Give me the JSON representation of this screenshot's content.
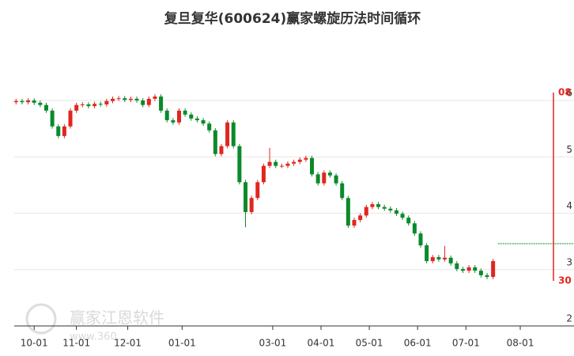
{
  "chart_data": {
    "type": "candlestick",
    "title": "复旦复华(600624)赢家螺旋历法时间循环",
    "watermark": "赢家江恩软件",
    "watermark_url": "www.360...",
    "up_color": "#e0261f",
    "down_color": "#0a8a2a",
    "ylim": [
      2,
      6
    ],
    "yticks": [
      2,
      3,
      4,
      5,
      6
    ],
    "xlim": [
      -0.3,
      92.4
    ],
    "xticks": [
      {
        "value": 3,
        "label": "10-01"
      },
      {
        "value": 10,
        "label": "11-01"
      },
      {
        "value": 18.5,
        "label": "12-01"
      },
      {
        "value": 27.5,
        "label": "01-01"
      },
      {
        "value": 42.5,
        "label": "03-01"
      },
      {
        "value": 50.5,
        "label": "04-01"
      },
      {
        "value": 58.5,
        "label": "05-01"
      },
      {
        "value": 66.5,
        "label": "06-01"
      },
      {
        "value": 74.5,
        "label": "07-01"
      },
      {
        "value": 83.5,
        "label": "08-01"
      }
    ],
    "grid": true,
    "open": [
      5.97,
      5.99,
      5.97,
      6.0,
      5.96,
      5.92,
      5.82,
      5.54,
      5.37,
      5.54,
      5.82,
      5.92,
      5.93,
      5.9,
      5.94,
      5.93,
      5.99,
      6.03,
      6.04,
      6.01,
      6.03,
      6.0,
      5.92,
      6.03,
      6.07,
      5.82,
      5.65,
      5.61,
      5.82,
      5.75,
      5.68,
      5.65,
      5.59,
      5.47,
      5.05,
      5.19,
      5.61,
      5.19,
      4.55,
      4.02,
      4.27,
      4.55,
      4.84,
      4.91,
      4.84,
      4.84,
      4.88,
      4.91,
      4.95,
      4.98,
      4.69,
      4.53,
      4.72,
      4.67,
      4.53,
      4.27,
      3.78,
      3.88,
      3.96,
      4.11,
      4.16,
      4.11,
      4.08,
      4.05,
      3.99,
      3.92,
      3.82,
      3.64,
      3.43,
      3.15,
      3.22,
      3.18,
      3.21,
      3.11,
      3.01,
      2.98,
      3.04,
      2.98,
      2.9,
      2.87
    ],
    "close": [
      5.99,
      5.97,
      6.0,
      5.96,
      5.92,
      5.82,
      5.54,
      5.37,
      5.54,
      5.82,
      5.92,
      5.93,
      5.9,
      5.94,
      5.93,
      5.99,
      6.03,
      6.04,
      6.01,
      6.03,
      6.0,
      5.92,
      6.03,
      6.07,
      5.82,
      5.65,
      5.61,
      5.82,
      5.75,
      5.68,
      5.65,
      5.59,
      5.47,
      5.05,
      5.19,
      5.61,
      5.19,
      4.55,
      4.02,
      4.27,
      4.55,
      4.84,
      4.91,
      4.84,
      4.84,
      4.88,
      4.91,
      4.95,
      4.98,
      4.69,
      4.53,
      4.72,
      4.67,
      4.53,
      4.27,
      3.78,
      3.88,
      3.96,
      4.11,
      4.16,
      4.11,
      4.08,
      4.05,
      3.99,
      3.92,
      3.82,
      3.64,
      3.43,
      3.15,
      3.22,
      3.18,
      3.21,
      3.11,
      3.01,
      2.98,
      3.04,
      2.98,
      2.9,
      2.87,
      3.15
    ],
    "high": [
      6.03,
      6.03,
      6.04,
      6.04,
      6.0,
      5.96,
      5.86,
      5.58,
      5.58,
      5.86,
      5.96,
      5.97,
      5.97,
      5.98,
      5.98,
      6.03,
      6.07,
      6.08,
      6.08,
      6.07,
      6.07,
      6.04,
      6.07,
      6.11,
      6.11,
      5.86,
      5.69,
      5.86,
      5.86,
      5.79,
      5.72,
      5.69,
      5.63,
      5.51,
      5.23,
      5.65,
      5.65,
      5.23,
      4.59,
      4.31,
      4.59,
      4.88,
      5.16,
      4.95,
      4.88,
      4.92,
      4.95,
      4.99,
      5.02,
      5.02,
      4.73,
      4.76,
      4.76,
      4.71,
      4.57,
      4.31,
      3.92,
      4.0,
      4.15,
      4.2,
      4.2,
      4.15,
      4.12,
      4.09,
      4.03,
      3.96,
      3.86,
      3.68,
      3.47,
      3.26,
      3.26,
      3.42,
      3.25,
      3.15,
      3.05,
      3.08,
      3.08,
      3.02,
      2.94,
      3.19
    ],
    "low": [
      5.93,
      5.93,
      5.93,
      5.92,
      5.88,
      5.78,
      5.5,
      5.33,
      5.33,
      5.5,
      5.78,
      5.88,
      5.86,
      5.86,
      5.89,
      5.89,
      5.95,
      5.99,
      5.97,
      5.97,
      5.96,
      5.88,
      5.88,
      5.99,
      5.78,
      5.61,
      5.57,
      5.57,
      5.71,
      5.64,
      5.61,
      5.55,
      5.43,
      5.01,
      5.01,
      5.15,
      5.15,
      4.51,
      3.75,
      3.98,
      4.23,
      4.51,
      4.8,
      4.8,
      4.8,
      4.8,
      4.84,
      4.87,
      4.91,
      4.65,
      4.49,
      4.49,
      4.63,
      4.49,
      4.23,
      3.74,
      3.74,
      3.84,
      3.92,
      4.07,
      4.07,
      4.04,
      4.01,
      3.95,
      3.88,
      3.78,
      3.6,
      3.39,
      3.11,
      3.11,
      3.14,
      3.14,
      3.07,
      2.97,
      2.94,
      2.94,
      2.94,
      2.86,
      2.83,
      2.83
    ],
    "reference_line": 3.46,
    "cycle_marker": {
      "x": 89,
      "top_label": "08",
      "bottom_label": "30",
      "color": "#e0261f"
    }
  }
}
